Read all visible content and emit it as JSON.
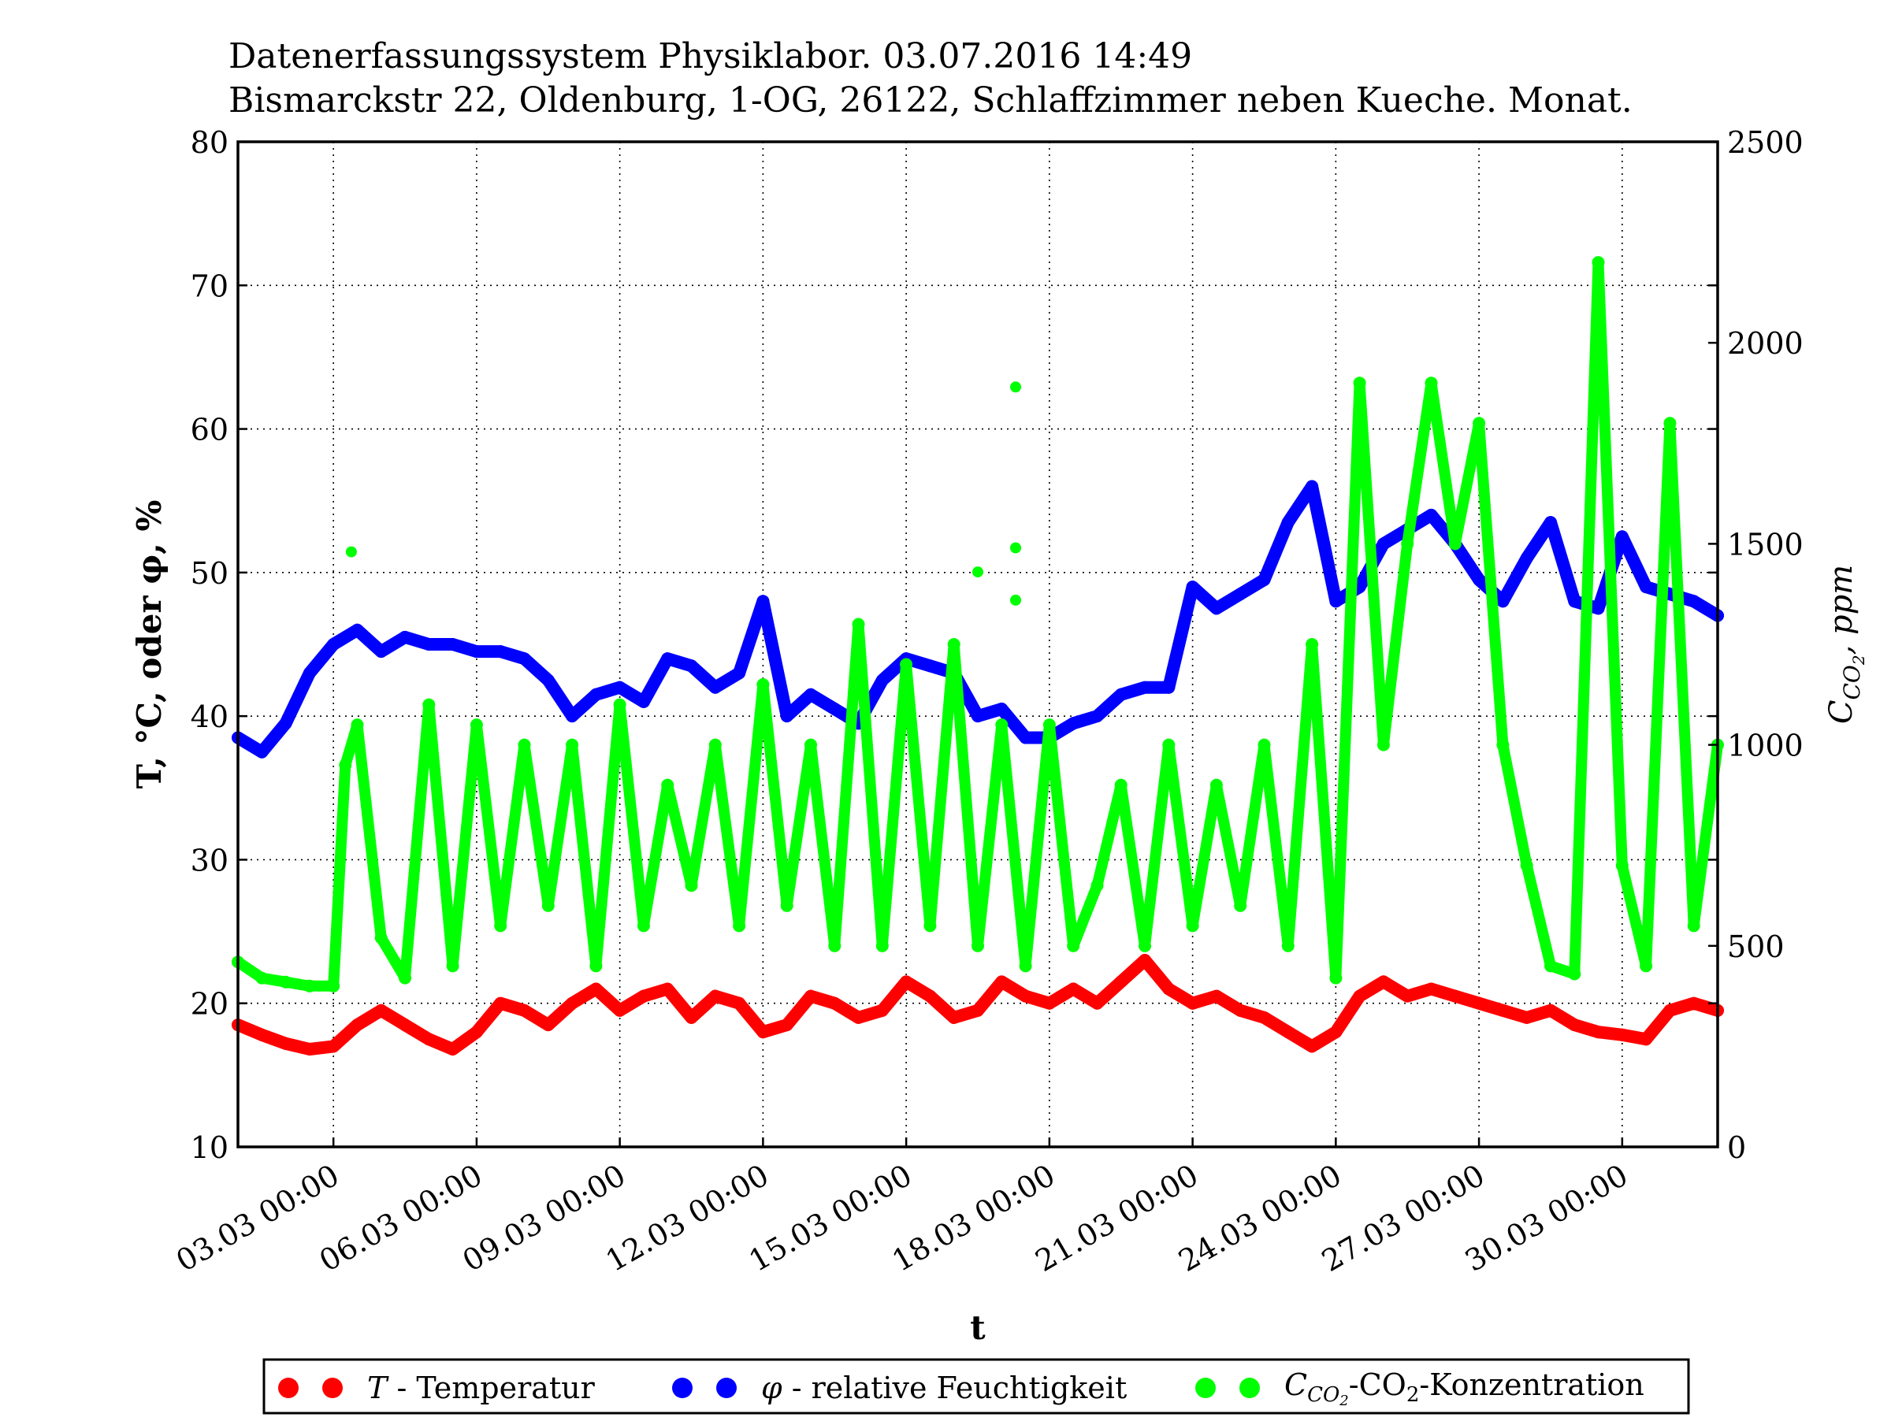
{
  "chart_data": {
    "type": "scatter",
    "title_line1": "Datenerfassungssystem Physiklabor. 03.07.2016 14:49",
    "title_line2": "Bismarckstr 22, Oldenburg, 1-OG, 26122, Schlaffzimmer neben Kueche. Monat.",
    "xlabel": "t",
    "ylabel_left": "T, °C, oder φ, %",
    "ylabel_right": "C_CO2, ppm",
    "x_range": [
      "2016-03-01 00:00",
      "2016-04-01 00:00"
    ],
    "x_ticks": [
      {
        "date": "2016-03-03 00:00",
        "label": "03.03 00:00"
      },
      {
        "date": "2016-03-06 00:00",
        "label": "06.03 00:00"
      },
      {
        "date": "2016-03-09 00:00",
        "label": "09.03 00:00"
      },
      {
        "date": "2016-03-12 00:00",
        "label": "12.03 00:00"
      },
      {
        "date": "2016-03-15 00:00",
        "label": "15.03 00:00"
      },
      {
        "date": "2016-03-18 00:00",
        "label": "18.03 00:00"
      },
      {
        "date": "2016-03-21 00:00",
        "label": "21.03 00:00"
      },
      {
        "date": "2016-03-24 00:00",
        "label": "24.03 00:00"
      },
      {
        "date": "2016-03-27 00:00",
        "label": "27.03 00:00"
      },
      {
        "date": "2016-03-30 00:00",
        "label": "30.03 00:00"
      }
    ],
    "ylim_left": [
      10,
      80
    ],
    "yticks_left": [
      10,
      20,
      30,
      40,
      50,
      60,
      70,
      80
    ],
    "ylim_right": [
      0,
      2500
    ],
    "yticks_right": [
      0,
      500,
      1000,
      1500,
      2000,
      2500
    ],
    "grid": true,
    "legend_position": "bottom",
    "series": [
      {
        "name": "T - Temperatur",
        "legend_label": "T - Temperatur",
        "color": "#ff0000",
        "axis": "left",
        "x": [
          "2016-03-01 00:00",
          "2016-03-01 12:00",
          "2016-03-02 00:00",
          "2016-03-02 12:00",
          "2016-03-03 00:00",
          "2016-03-03 12:00",
          "2016-03-04 00:00",
          "2016-03-04 12:00",
          "2016-03-05 00:00",
          "2016-03-05 12:00",
          "2016-03-06 00:00",
          "2016-03-06 12:00",
          "2016-03-07 00:00",
          "2016-03-07 12:00",
          "2016-03-08 00:00",
          "2016-03-08 12:00",
          "2016-03-09 00:00",
          "2016-03-09 12:00",
          "2016-03-10 00:00",
          "2016-03-10 12:00",
          "2016-03-11 00:00",
          "2016-03-11 12:00",
          "2016-03-12 00:00",
          "2016-03-12 12:00",
          "2016-03-13 00:00",
          "2016-03-13 12:00",
          "2016-03-14 00:00",
          "2016-03-14 12:00",
          "2016-03-15 00:00",
          "2016-03-15 12:00",
          "2016-03-16 00:00",
          "2016-03-16 12:00",
          "2016-03-17 00:00",
          "2016-03-17 12:00",
          "2016-03-18 00:00",
          "2016-03-18 12:00",
          "2016-03-19 00:00",
          "2016-03-19 12:00",
          "2016-03-20 00:00",
          "2016-03-20 12:00",
          "2016-03-21 00:00",
          "2016-03-21 12:00",
          "2016-03-22 00:00",
          "2016-03-22 12:00",
          "2016-03-23 00:00",
          "2016-03-23 12:00",
          "2016-03-24 00:00",
          "2016-03-24 12:00",
          "2016-03-25 00:00",
          "2016-03-25 12:00",
          "2016-03-26 00:00",
          "2016-03-26 12:00",
          "2016-03-27 00:00",
          "2016-03-27 12:00",
          "2016-03-28 00:00",
          "2016-03-28 12:00",
          "2016-03-29 00:00",
          "2016-03-29 12:00",
          "2016-03-30 00:00",
          "2016-03-30 12:00",
          "2016-03-31 00:00",
          "2016-03-31 12:00",
          "2016-04-01 00:00"
        ],
        "values": [
          18.5,
          17.8,
          17.2,
          16.8,
          17.0,
          18.5,
          19.5,
          18.5,
          17.5,
          16.8,
          18.0,
          20.0,
          19.5,
          18.5,
          20.0,
          21.0,
          19.5,
          20.5,
          21.0,
          19.0,
          20.5,
          20.0,
          18.0,
          18.5,
          20.5,
          20.0,
          19.0,
          19.5,
          21.5,
          20.5,
          19.0,
          19.5,
          21.5,
          20.5,
          20.0,
          21.0,
          20.0,
          21.5,
          23.0,
          21.0,
          20.0,
          20.5,
          19.5,
          19.0,
          18.0,
          17.0,
          18.0,
          20.5,
          21.5,
          20.5,
          21.0,
          20.5,
          20.0,
          19.5,
          19.0,
          19.5,
          18.5,
          18.0,
          17.8,
          17.5,
          19.5,
          20.0,
          19.5
        ]
      },
      {
        "name": "φ - relative Feuchtigkeit",
        "legend_label": "φ - relative Feuchtigkeit",
        "color": "#0000ff",
        "axis": "left",
        "x": [
          "2016-03-01 00:00",
          "2016-03-01 12:00",
          "2016-03-02 00:00",
          "2016-03-02 12:00",
          "2016-03-03 00:00",
          "2016-03-03 12:00",
          "2016-03-04 00:00",
          "2016-03-04 12:00",
          "2016-03-05 00:00",
          "2016-03-05 12:00",
          "2016-03-06 00:00",
          "2016-03-06 12:00",
          "2016-03-07 00:00",
          "2016-03-07 12:00",
          "2016-03-08 00:00",
          "2016-03-08 12:00",
          "2016-03-09 00:00",
          "2016-03-09 12:00",
          "2016-03-10 00:00",
          "2016-03-10 12:00",
          "2016-03-11 00:00",
          "2016-03-11 12:00",
          "2016-03-12 00:00",
          "2016-03-12 12:00",
          "2016-03-13 00:00",
          "2016-03-13 12:00",
          "2016-03-14 00:00",
          "2016-03-14 12:00",
          "2016-03-15 00:00",
          "2016-03-15 12:00",
          "2016-03-16 00:00",
          "2016-03-16 12:00",
          "2016-03-17 00:00",
          "2016-03-17 12:00",
          "2016-03-18 00:00",
          "2016-03-18 12:00",
          "2016-03-19 00:00",
          "2016-03-19 12:00",
          "2016-03-20 00:00",
          "2016-03-20 12:00",
          "2016-03-21 00:00",
          "2016-03-21 12:00",
          "2016-03-22 00:00",
          "2016-03-22 12:00",
          "2016-03-23 00:00",
          "2016-03-23 12:00",
          "2016-03-24 00:00",
          "2016-03-24 12:00",
          "2016-03-25 00:00",
          "2016-03-25 12:00",
          "2016-03-26 00:00",
          "2016-03-26 12:00",
          "2016-03-27 00:00",
          "2016-03-27 12:00",
          "2016-03-28 00:00",
          "2016-03-28 12:00",
          "2016-03-29 00:00",
          "2016-03-29 12:00",
          "2016-03-30 00:00",
          "2016-03-30 12:00",
          "2016-03-31 00:00",
          "2016-03-31 12:00",
          "2016-04-01 00:00"
        ],
        "values": [
          38.5,
          37.5,
          39.5,
          43.0,
          45.0,
          46.0,
          44.5,
          45.5,
          45.0,
          45.0,
          44.5,
          44.5,
          44.0,
          42.5,
          40.0,
          41.5,
          42.0,
          41.0,
          44.0,
          43.5,
          42.0,
          43.0,
          48.0,
          40.0,
          41.5,
          40.5,
          39.5,
          42.5,
          44.0,
          43.5,
          43.0,
          40.0,
          40.5,
          38.5,
          38.5,
          39.5,
          40.0,
          41.5,
          42.0,
          42.0,
          49.0,
          47.5,
          48.5,
          49.5,
          53.5,
          56.0,
          48.0,
          49.0,
          52.0,
          53.0,
          54.0,
          52.0,
          49.5,
          48.0,
          51.0,
          53.5,
          48.0,
          47.5,
          52.5,
          49.0,
          48.5,
          48.0,
          47.0
        ]
      },
      {
        "name": "C_CO2 - CO2-Konzentration",
        "legend_label": "-CO",
        "legend_label_sub": "2",
        "legend_label_tail": "-Konzentration",
        "color": "#00ff00",
        "axis": "right",
        "x": [
          "2016-03-01 00:00",
          "2016-03-01 12:00",
          "2016-03-02 00:00",
          "2016-03-02 12:00",
          "2016-03-03 00:00",
          "2016-03-03 06:00",
          "2016-03-03 12:00",
          "2016-03-04 00:00",
          "2016-03-04 12:00",
          "2016-03-05 00:00",
          "2016-03-05 12:00",
          "2016-03-06 00:00",
          "2016-03-06 12:00",
          "2016-03-07 00:00",
          "2016-03-07 12:00",
          "2016-03-08 00:00",
          "2016-03-08 12:00",
          "2016-03-09 00:00",
          "2016-03-09 12:00",
          "2016-03-10 00:00",
          "2016-03-10 12:00",
          "2016-03-11 00:00",
          "2016-03-11 12:00",
          "2016-03-12 00:00",
          "2016-03-12 12:00",
          "2016-03-13 00:00",
          "2016-03-13 12:00",
          "2016-03-14 00:00",
          "2016-03-14 12:00",
          "2016-03-15 00:00",
          "2016-03-15 12:00",
          "2016-03-16 00:00",
          "2016-03-16 12:00",
          "2016-03-17 00:00",
          "2016-03-17 12:00",
          "2016-03-18 00:00",
          "2016-03-18 12:00",
          "2016-03-19 00:00",
          "2016-03-19 12:00",
          "2016-03-20 00:00",
          "2016-03-20 12:00",
          "2016-03-21 00:00",
          "2016-03-21 12:00",
          "2016-03-22 00:00",
          "2016-03-22 12:00",
          "2016-03-23 00:00",
          "2016-03-23 12:00",
          "2016-03-24 00:00",
          "2016-03-24 12:00",
          "2016-03-25 00:00",
          "2016-03-25 12:00",
          "2016-03-26 00:00",
          "2016-03-26 12:00",
          "2016-03-27 00:00",
          "2016-03-27 12:00",
          "2016-03-28 00:00",
          "2016-03-28 12:00",
          "2016-03-29 00:00",
          "2016-03-29 12:00",
          "2016-03-30 00:00",
          "2016-03-30 12:00",
          "2016-03-31 00:00",
          "2016-03-31 12:00",
          "2016-04-01 00:00"
        ],
        "values": [
          460,
          420,
          410,
          400,
          400,
          950,
          1050,
          520,
          420,
          1100,
          450,
          1050,
          550,
          1000,
          600,
          1000,
          450,
          1100,
          550,
          900,
          650,
          1000,
          550,
          1150,
          600,
          1000,
          500,
          1300,
          500,
          1200,
          550,
          1250,
          500,
          1050,
          450,
          1050,
          500,
          650,
          900,
          500,
          1000,
          550,
          900,
          600,
          1000,
          500,
          1250,
          420,
          1900,
          1000,
          1500,
          1900,
          1500,
          1800,
          1000,
          700,
          450,
          430,
          2200,
          700,
          450,
          1800,
          550,
          1000
        ]
      }
    ],
    "scatter_outliers": [
      {
        "series": "C_CO2 - CO2-Konzentration",
        "x": "2016-03-03 09:00",
        "y": 1480
      },
      {
        "series": "C_CO2 - CO2-Konzentration",
        "x": "2016-03-16 12:00",
        "y": 1430
      },
      {
        "series": "C_CO2 - CO2-Konzentration",
        "x": "2016-03-17 07:00",
        "y": 1890
      },
      {
        "series": "C_CO2 - CO2-Konzentration",
        "x": "2016-03-17 07:00",
        "y": 1490
      },
      {
        "series": "C_CO2 - CO2-Konzentration",
        "x": "2016-03-17 07:00",
        "y": 1360
      }
    ]
  }
}
